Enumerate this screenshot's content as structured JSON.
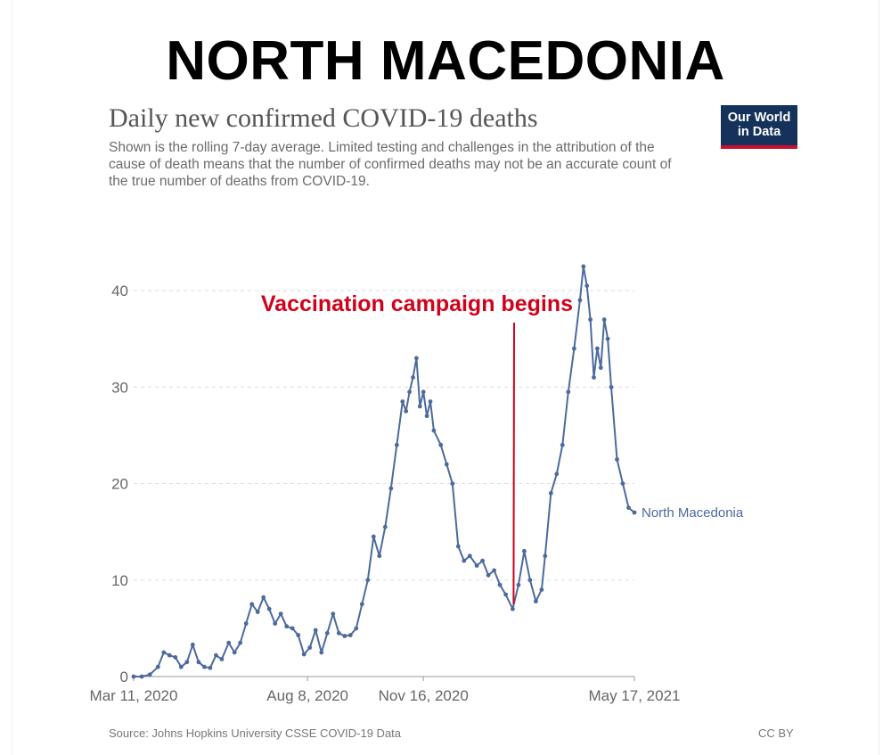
{
  "heading": "NORTH MACEDONIA",
  "logo": {
    "line1": "Our World",
    "line2": "in Data"
  },
  "footer": {
    "source": "Source: Johns Hopkins University CSSE COVID-19 Data",
    "license": "CC BY"
  },
  "colors": {
    "line": "#4c6a9c",
    "annotation": "#d0021b",
    "grid": "#dddddd",
    "logo_bg": "#14325a"
  },
  "chart_data": {
    "type": "line",
    "title": "Daily new confirmed COVID-19 deaths",
    "subtitle": "Shown is the rolling 7-day average. Limited testing and challenges in the attribution of the cause of death means that the number of confirmed deaths may not be an accurate count of the true number of deaths from COVID-19.",
    "xlabel": "",
    "ylabel": "",
    "ylim": [
      0,
      45
    ],
    "y_ticks": [
      0,
      10,
      20,
      30,
      40
    ],
    "x_range": [
      "2020-03-11",
      "2021-05-17"
    ],
    "x_ticks": [
      {
        "date": "2020-03-11",
        "label": "Mar 11, 2020"
      },
      {
        "date": "2020-08-08",
        "label": "Aug 8, 2020"
      },
      {
        "date": "2020-11-16",
        "label": "Nov 16, 2020"
      },
      {
        "date": "2021-05-17",
        "label": "May 17, 2021"
      }
    ],
    "grid": "horizontal dashed",
    "series": [
      {
        "name": "North Macedonia",
        "points": [
          [
            "2020-03-11",
            0
          ],
          [
            "2020-03-18",
            0
          ],
          [
            "2020-03-25",
            0.2
          ],
          [
            "2020-04-01",
            1.0
          ],
          [
            "2020-04-06",
            2.5
          ],
          [
            "2020-04-11",
            2.2
          ],
          [
            "2020-04-16",
            2.0
          ],
          [
            "2020-04-21",
            1.0
          ],
          [
            "2020-04-26",
            1.5
          ],
          [
            "2020-05-01",
            3.3
          ],
          [
            "2020-05-06",
            1.5
          ],
          [
            "2020-05-11",
            1.0
          ],
          [
            "2020-05-16",
            0.9
          ],
          [
            "2020-05-21",
            2.2
          ],
          [
            "2020-05-26",
            1.8
          ],
          [
            "2020-06-01",
            3.5
          ],
          [
            "2020-06-06",
            2.5
          ],
          [
            "2020-06-11",
            3.5
          ],
          [
            "2020-06-16",
            5.5
          ],
          [
            "2020-06-21",
            7.5
          ],
          [
            "2020-06-26",
            6.7
          ],
          [
            "2020-07-01",
            8.2
          ],
          [
            "2020-07-06",
            7.0
          ],
          [
            "2020-07-11",
            5.5
          ],
          [
            "2020-07-16",
            6.5
          ],
          [
            "2020-07-21",
            5.2
          ],
          [
            "2020-07-26",
            5.0
          ],
          [
            "2020-07-31",
            4.3
          ],
          [
            "2020-08-05",
            2.3
          ],
          [
            "2020-08-10",
            3.0
          ],
          [
            "2020-08-15",
            4.8
          ],
          [
            "2020-08-20",
            2.5
          ],
          [
            "2020-08-25",
            4.5
          ],
          [
            "2020-08-30",
            6.5
          ],
          [
            "2020-09-04",
            4.5
          ],
          [
            "2020-09-09",
            4.2
          ],
          [
            "2020-09-14",
            4.3
          ],
          [
            "2020-09-19",
            5.0
          ],
          [
            "2020-09-24",
            7.5
          ],
          [
            "2020-09-29",
            10.0
          ],
          [
            "2020-10-04",
            14.5
          ],
          [
            "2020-10-09",
            12.5
          ],
          [
            "2020-10-14",
            15.5
          ],
          [
            "2020-10-19",
            19.5
          ],
          [
            "2020-10-24",
            24.0
          ],
          [
            "2020-10-29",
            28.5
          ],
          [
            "2020-11-01",
            27.5
          ],
          [
            "2020-11-04",
            29.5
          ],
          [
            "2020-11-07",
            31.0
          ],
          [
            "2020-11-10",
            33.0
          ],
          [
            "2020-11-13",
            28.0
          ],
          [
            "2020-11-16",
            29.5
          ],
          [
            "2020-11-19",
            27.0
          ],
          [
            "2020-11-22",
            28.5
          ],
          [
            "2020-11-25",
            25.5
          ],
          [
            "2020-12-01",
            24.0
          ],
          [
            "2020-12-06",
            22.0
          ],
          [
            "2020-12-11",
            20.0
          ],
          [
            "2020-12-16",
            13.5
          ],
          [
            "2020-12-21",
            12.0
          ],
          [
            "2020-12-26",
            12.5
          ],
          [
            "2021-01-01",
            11.5
          ],
          [
            "2021-01-06",
            12.0
          ],
          [
            "2021-01-11",
            10.5
          ],
          [
            "2021-01-16",
            11.0
          ],
          [
            "2021-01-21",
            9.5
          ],
          [
            "2021-01-26",
            8.5
          ],
          [
            "2021-02-01",
            7.0
          ],
          [
            "2021-02-06",
            9.5
          ],
          [
            "2021-02-11",
            13.0
          ],
          [
            "2021-02-16",
            10.0
          ],
          [
            "2021-02-21",
            7.8
          ],
          [
            "2021-02-26",
            9.0
          ],
          [
            "2021-03-01",
            12.5
          ],
          [
            "2021-03-06",
            19.0
          ],
          [
            "2021-03-11",
            21.0
          ],
          [
            "2021-03-16",
            24.0
          ],
          [
            "2021-03-21",
            29.5
          ],
          [
            "2021-03-26",
            34.0
          ],
          [
            "2021-03-31",
            39.0
          ],
          [
            "2021-04-03",
            42.5
          ],
          [
            "2021-04-06",
            40.5
          ],
          [
            "2021-04-09",
            37.0
          ],
          [
            "2021-04-12",
            31.0
          ],
          [
            "2021-04-15",
            34.0
          ],
          [
            "2021-04-18",
            32.0
          ],
          [
            "2021-04-21",
            37.0
          ],
          [
            "2021-04-24",
            35.0
          ],
          [
            "2021-04-27",
            30.0
          ],
          [
            "2021-05-02",
            22.5
          ],
          [
            "2021-05-07",
            20.0
          ],
          [
            "2021-05-12",
            17.5
          ],
          [
            "2021-05-17",
            17.0
          ]
        ]
      }
    ],
    "annotations": [
      {
        "text": "Vaccination campaign begins",
        "date": "2021-02-01",
        "value": 7.5
      }
    ]
  }
}
